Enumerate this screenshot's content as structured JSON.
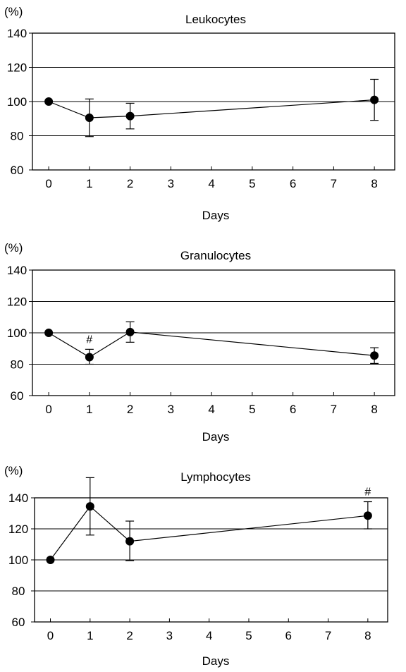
{
  "chart_data": [
    {
      "type": "line",
      "title": "Leukocytes",
      "ylabel": "(%)",
      "xlabel": "Days",
      "x_ticks": [
        "0",
        "1",
        "2",
        "3",
        "4",
        "5",
        "6",
        "7",
        "8"
      ],
      "y_ticks": [
        "60",
        "80",
        "100",
        "120",
        "140"
      ],
      "xlim": [
        -0.4,
        8.5
      ],
      "ylim": [
        60,
        140
      ],
      "grid": "horizontal",
      "series": [
        {
          "x": [
            0,
            1,
            2,
            8
          ],
          "y": [
            100,
            90.5,
            91.5,
            101
          ],
          "error_low": [
            null,
            79.5,
            84,
            89
          ],
          "error_high": [
            null,
            101.5,
            99,
            113
          ],
          "marks": [
            "",
            "",
            "",
            ""
          ]
        }
      ]
    },
    {
      "type": "line",
      "title": "Granulocytes",
      "ylabel": "(%)",
      "xlabel": "Days",
      "x_ticks": [
        "0",
        "1",
        "2",
        "3",
        "4",
        "5",
        "6",
        "7",
        "8"
      ],
      "y_ticks": [
        "60",
        "80",
        "100",
        "120",
        "140"
      ],
      "xlim": [
        -0.4,
        8.5
      ],
      "ylim": [
        60,
        140
      ],
      "grid": "horizontal",
      "series": [
        {
          "x": [
            0,
            1,
            2,
            8
          ],
          "y": [
            100,
            84.5,
            100.5,
            85.5
          ],
          "error_low": [
            null,
            80,
            94,
            80.5
          ],
          "error_high": [
            null,
            89.5,
            107,
            90.5
          ],
          "marks": [
            "",
            "#",
            "",
            ""
          ]
        }
      ]
    },
    {
      "type": "line",
      "title": "Lymphocytes",
      "ylabel": "(%)",
      "xlabel": "Days",
      "x_ticks": [
        "0",
        "1",
        "2",
        "3",
        "4",
        "5",
        "6",
        "7",
        "8"
      ],
      "y_ticks": [
        "60",
        "80",
        "100",
        "120",
        "140"
      ],
      "xlim": [
        -0.4,
        8.5
      ],
      "ylim": [
        60,
        140
      ],
      "grid": "horizontal",
      "series": [
        {
          "x": [
            0,
            1,
            2,
            8
          ],
          "y": [
            100,
            134.5,
            112,
            128.5
          ],
          "error_low": [
            null,
            116,
            99.5,
            120
          ],
          "error_high": [
            null,
            153,
            125,
            137.5
          ],
          "marks": [
            "",
            "",
            "",
            "#"
          ]
        }
      ]
    }
  ]
}
